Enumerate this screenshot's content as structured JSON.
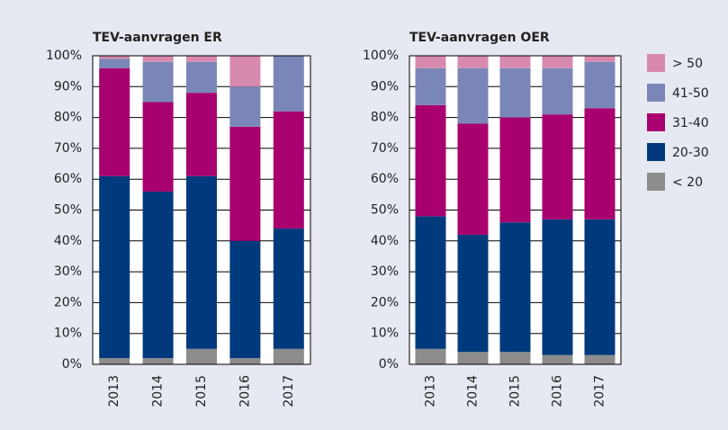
{
  "chart_data": [
    {
      "type": "bar",
      "stacked": true,
      "title": "TEV-aanvragen ER",
      "categories": [
        "2013",
        "2014",
        "2015",
        "2016",
        "2017"
      ],
      "series": [
        {
          "name": "< 20",
          "color": "#8c8c8c",
          "values": [
            2,
            2,
            5,
            2,
            5
          ]
        },
        {
          "name": "20-30",
          "color": "#003a7d",
          "values": [
            59,
            54,
            56,
            38,
            39
          ]
        },
        {
          "name": "31-40",
          "color": "#a8006e",
          "values": [
            35,
            29,
            27,
            37,
            38
          ]
        },
        {
          "name": "41-50",
          "color": "#7a86b8",
          "values": [
            3,
            13,
            10,
            13,
            18
          ]
        },
        {
          "name": "> 50",
          "color": "#d88aae",
          "values": [
            1,
            2,
            2,
            10,
            0
          ]
        }
      ],
      "ylim": [
        0,
        100
      ],
      "yticks": [
        {
          "value": 0,
          "label": "0%"
        },
        {
          "value": 10,
          "label": "10%"
        },
        {
          "value": 20,
          "label": "20%"
        },
        {
          "value": 30,
          "label": "30%"
        },
        {
          "value": 40,
          "label": "40%"
        },
        {
          "value": 50,
          "label": "50%"
        },
        {
          "value": 60,
          "label": "60%"
        },
        {
          "value": 70,
          "label": "70%"
        },
        {
          "value": 80,
          "label": "80%"
        },
        {
          "value": 90,
          "label": "90%"
        },
        {
          "value": 100,
          "label": "100%"
        }
      ],
      "grid": true,
      "legend": "right"
    },
    {
      "type": "bar",
      "stacked": true,
      "title": "TEV-aanvragen OER",
      "categories": [
        "2013",
        "2014",
        "2015",
        "2016",
        "2017"
      ],
      "series": [
        {
          "name": "< 20",
          "color": "#8c8c8c",
          "values": [
            5,
            4,
            4,
            3,
            3
          ]
        },
        {
          "name": "20-30",
          "color": "#003a7d",
          "values": [
            43,
            38,
            42,
            44,
            44
          ]
        },
        {
          "name": "31-40",
          "color": "#a8006e",
          "values": [
            36,
            36,
            34,
            34,
            36
          ]
        },
        {
          "name": "41-50",
          "color": "#7a86b8",
          "values": [
            12,
            18,
            16,
            15,
            15
          ]
        },
        {
          "name": "> 50",
          "color": "#d88aae",
          "values": [
            4,
            4,
            4,
            4,
            2
          ]
        }
      ],
      "ylim": [
        0,
        100
      ],
      "yticks": [
        {
          "value": 0,
          "label": "0%"
        },
        {
          "value": 10,
          "label": "10%"
        },
        {
          "value": 20,
          "label": "20%"
        },
        {
          "value": 30,
          "label": "30%"
        },
        {
          "value": 40,
          "label": "40%"
        },
        {
          "value": 50,
          "label": "50%"
        },
        {
          "value": 60,
          "label": "60%"
        },
        {
          "value": 70,
          "label": "70%"
        },
        {
          "value": 80,
          "label": "80%"
        },
        {
          "value": 90,
          "label": "90%"
        },
        {
          "value": 100,
          "label": "100%"
        }
      ],
      "grid": true
    }
  ]
}
